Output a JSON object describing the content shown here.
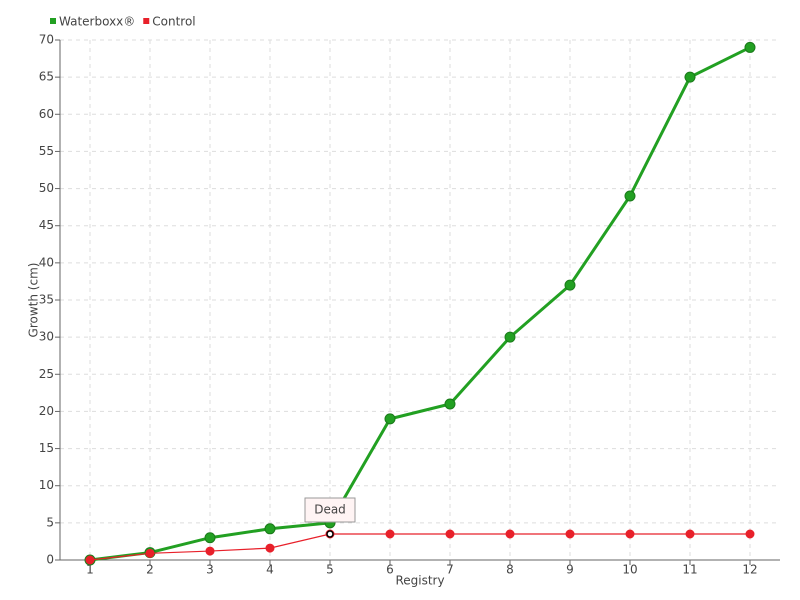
{
  "chart_data": {
    "type": "line",
    "x": [
      1,
      2,
      3,
      4,
      5,
      6,
      7,
      8,
      9,
      10,
      11,
      12
    ],
    "xlim": [
      0.5,
      12.5
    ],
    "xticks": [
      1,
      2,
      3,
      4,
      5,
      6,
      7,
      8,
      9,
      10,
      11,
      12
    ],
    "ylim": [
      0,
      70
    ],
    "yticks": [
      0,
      5,
      10,
      15,
      20,
      25,
      30,
      35,
      40,
      45,
      50,
      55,
      60,
      65,
      70
    ],
    "x_label": "Registry",
    "y_label": "Growth (cm)",
    "grid": true,
    "legend": "top-left",
    "series": [
      {
        "name": "Waterboxx®",
        "color": "#22a022",
        "values": [
          0,
          1,
          3,
          4.2,
          5,
          19,
          21,
          30,
          37,
          49,
          65,
          69
        ]
      },
      {
        "name": "Control",
        "color": "#e8202a",
        "values": [
          0,
          0.9,
          1.2,
          1.6,
          3.5,
          3.5,
          3.5,
          3.5,
          3.5,
          3.5,
          3.5,
          3.5
        ]
      }
    ],
    "annotations": [
      {
        "text": "Dead",
        "x": 5,
        "y": 3.5
      }
    ]
  }
}
